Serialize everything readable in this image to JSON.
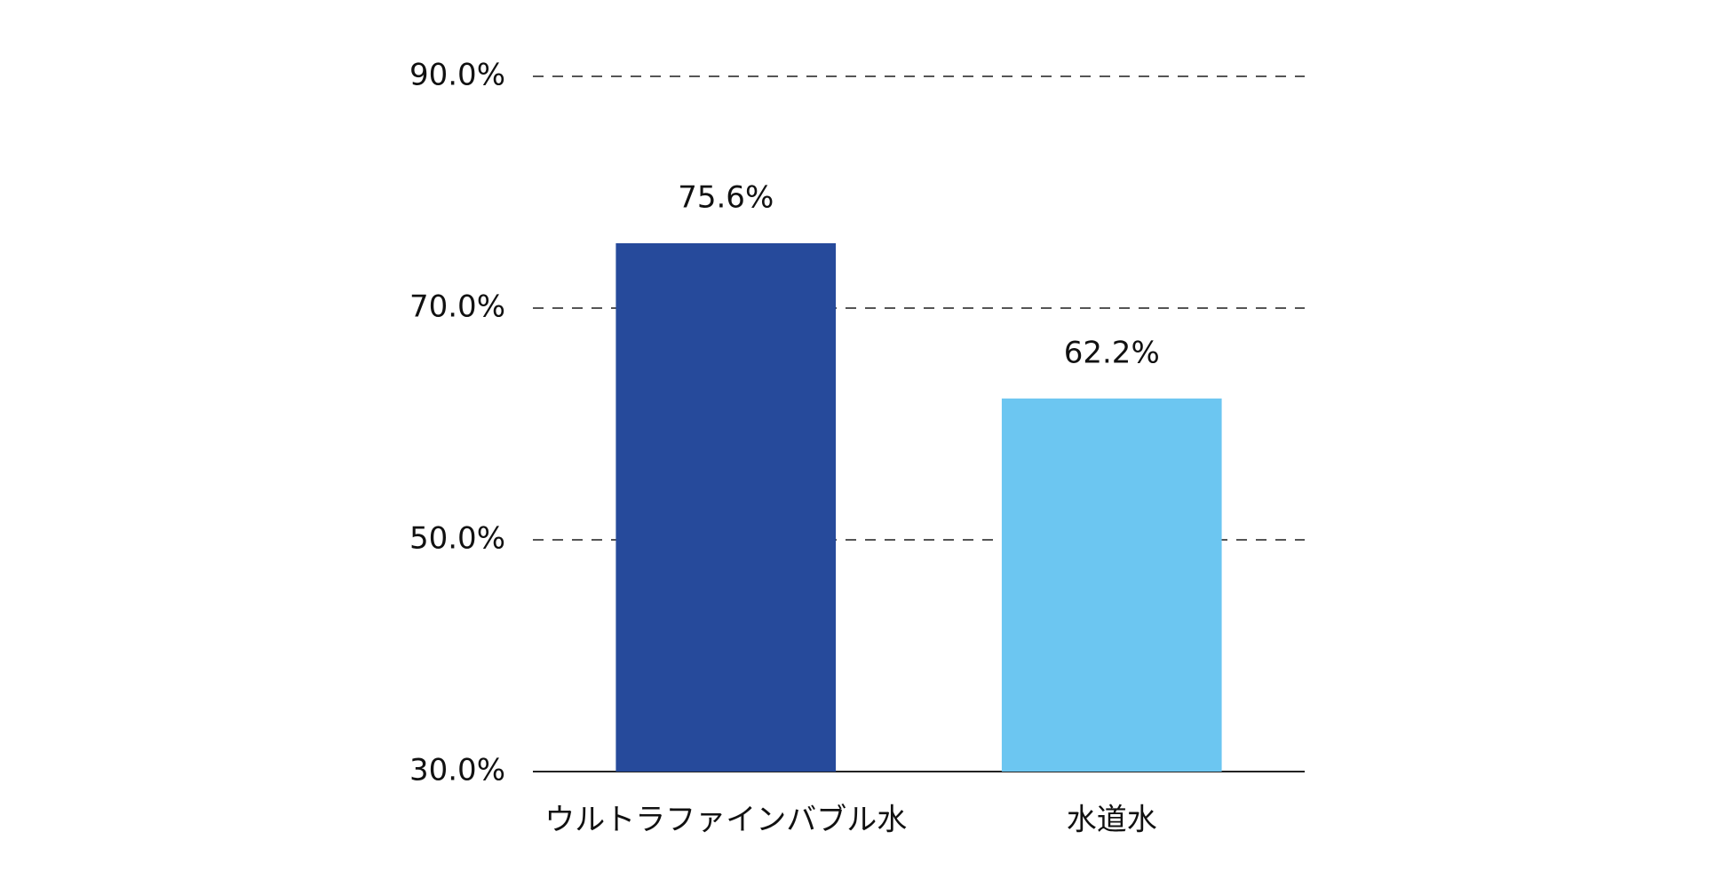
{
  "chart_data": {
    "type": "bar",
    "categories": [
      "ウルトラファインバブル水",
      "水道水"
    ],
    "values": [
      75.6,
      62.2
    ],
    "value_labels": [
      "75.6%",
      "62.2%"
    ],
    "colors": [
      "#264a9b",
      "#6cc6f1"
    ],
    "ylim": [
      30,
      90
    ],
    "yticks": [
      {
        "value": 30,
        "label": "30.0%"
      },
      {
        "value": 50,
        "label": "50.0%"
      },
      {
        "value": 70,
        "label": "70.0%"
      },
      {
        "value": 90,
        "label": "90.0%"
      }
    ],
    "grid": true
  }
}
